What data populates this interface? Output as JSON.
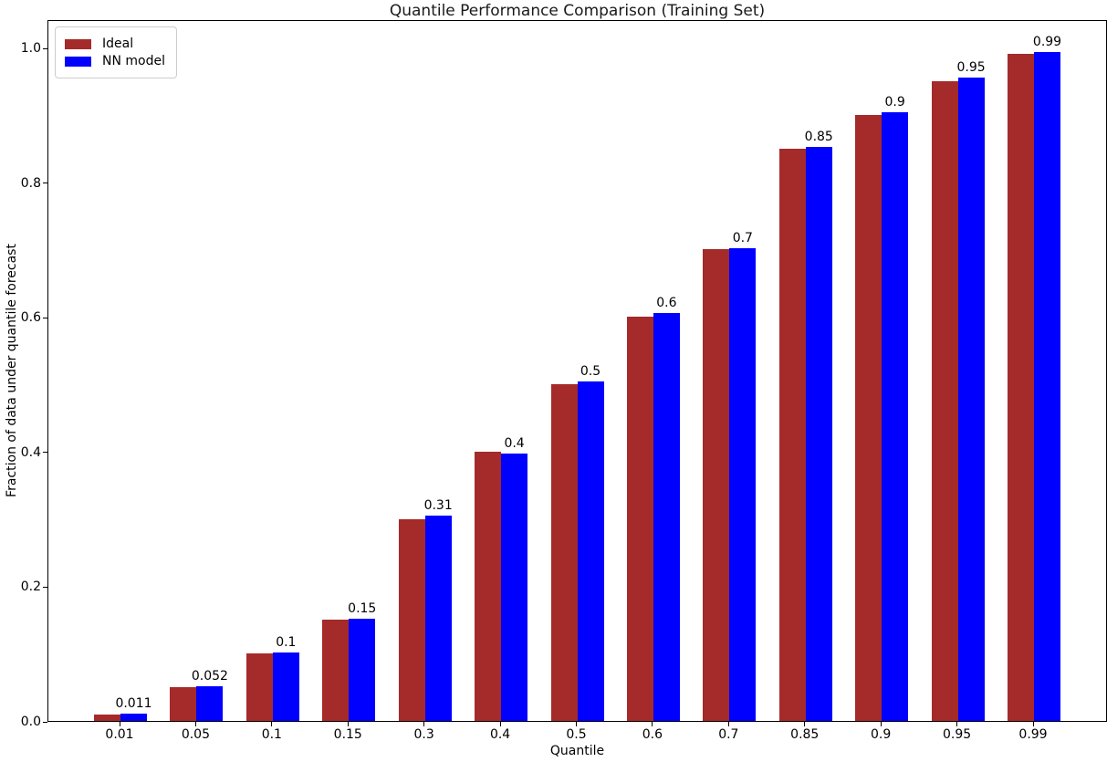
{
  "chart_data": {
    "type": "bar",
    "title": "Quantile Performance Comparison (Training Set)",
    "xlabel": "Quantile",
    "ylabel": "Fraction of data under quantile forecast",
    "categories": [
      "0.01",
      "0.05",
      "0.1",
      "0.15",
      "0.3",
      "0.4",
      "0.5",
      "0.6",
      "0.7",
      "0.85",
      "0.9",
      "0.95",
      "0.99"
    ],
    "series": [
      {
        "name": "Ideal",
        "color": "#A52A2A",
        "values": [
          0.01,
          0.05,
          0.1,
          0.15,
          0.3,
          0.4,
          0.5,
          0.6,
          0.7,
          0.85,
          0.9,
          0.95,
          0.99
        ]
      },
      {
        "name": "NN model",
        "color": "#0000FF",
        "values": [
          0.011,
          0.052,
          0.101,
          0.152,
          0.305,
          0.397,
          0.504,
          0.606,
          0.702,
          0.852,
          0.904,
          0.955,
          0.993
        ]
      }
    ],
    "bar_labels": [
      "0.011",
      "0.052",
      "0.1",
      "0.15",
      "0.31",
      "0.4",
      "0.5",
      "0.6",
      "0.7",
      "0.85",
      "0.9",
      "0.95",
      "0.99"
    ],
    "yticks": [
      "0.0",
      "0.2",
      "0.4",
      "0.6",
      "0.8",
      "1.0"
    ],
    "ylim": [
      0,
      1.042
    ],
    "grid": false,
    "legend_position": "upper-left",
    "axis_color": "#000000",
    "text_color": "#000000",
    "background": "#ffffff"
  }
}
